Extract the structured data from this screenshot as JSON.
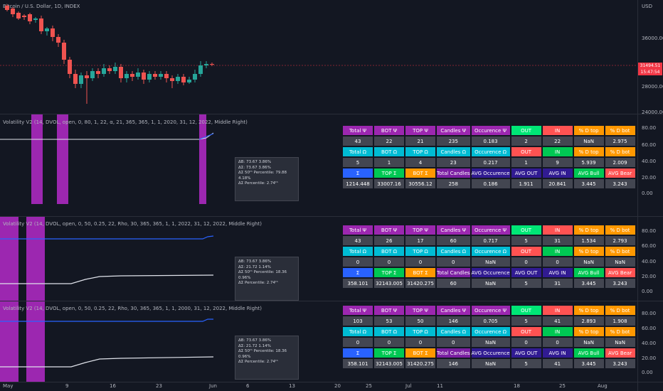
{
  "header": {
    "symbol_title": "Bitcoin / U.S. Dollar, 1D, INDEX",
    "currency": "USD"
  },
  "price_axis": {
    "ticks": [
      "36000.00",
      "28000.00",
      "24000.00"
    ],
    "last_price": "31494.51",
    "countdown": "15:47:54"
  },
  "pane_axes": {
    "pane1": [
      "80.00",
      "60.00",
      "40.00",
      "20.00",
      "0.00"
    ],
    "pane2": [
      "80.00",
      "60.00",
      "40.00",
      "20.00",
      "0.00"
    ],
    "pane3": [
      "80.00",
      "60.00",
      "40.00",
      "20.00",
      "0.00"
    ]
  },
  "time_axis": [
    "May",
    "9",
    "16",
    "23",
    "Jun",
    "6",
    "13",
    "20",
    "25",
    "Jul",
    "11",
    "18",
    "25",
    "Aug"
  ],
  "panes": [
    {
      "title": "Volatility V2 (14, DVOL, open, 0, 80, 1, 22, α, 21, 365, 365, 1, 1, 2020, 31, 12, 2022, Middle Right)",
      "info": [
        "ΔB: 73.67  3.86%",
        "ΔΣ: 73.67  3.86%",
        "ΔΣ 50ᵗʰ Percentile: 79.88  4.18%",
        "ΔΣ Percentile: 2.74ᵗʰ"
      ],
      "rows": [
        [
          "Total Ψ",
          "BOT Ψ",
          "TOP Ψ",
          "Candles Ψ",
          "Occurence Ψ",
          "OUT",
          "IN",
          "% D top",
          "% D bot"
        ],
        [
          "43",
          "22",
          "21",
          "235",
          "0.183",
          "2",
          "22",
          "NaN",
          "2.975"
        ],
        [
          "Total Ω",
          "BOT Ω",
          "TOP Ω",
          "Candles Ω",
          "Occurence Ω",
          "OUT",
          "IN",
          "% D top",
          "% D bot"
        ],
        [
          "5",
          "1",
          "4",
          "23",
          "0.217",
          "1",
          "9",
          "5.939",
          "2.009"
        ],
        [
          "Σ",
          "TOP Σ",
          "BOT Σ",
          "Total Candles",
          "AVG Occurence",
          "AVG OUT",
          "AVG IN",
          "AVG Bull",
          "AVG Bear"
        ],
        [
          "1214.448",
          "33007.16",
          "30556.12",
          "258",
          "0.186",
          "1.911",
          "20.841",
          "3.445",
          "3.243"
        ]
      ]
    },
    {
      "title": "Volatility V2 (14, DVOL, open, 0, 50, 0.25, 22, Rho, 30, 365, 365, 1, 1, 2022, 31, 12, 2022, Middle Right)",
      "info": [
        "ΔB: 73.67  3.86%",
        "ΔΣ: 21.72  1.14%",
        "ΔΣ 50ᵗʰ Percentile: 18.36  0.96%",
        "ΔΣ Percentile: 2.74ᵗʰ"
      ],
      "rows": [
        [
          "Total Ψ",
          "BOT Ψ",
          "TOP Ψ",
          "Candles Ψ",
          "Occurence Ψ",
          "OUT",
          "IN",
          "% D top",
          "% D bot"
        ],
        [
          "43",
          "26",
          "17",
          "60",
          "0.717",
          "5",
          "31",
          "1.534",
          "2.793"
        ],
        [
          "Total Ω",
          "BOT Ω",
          "TOP Ω",
          "Candles Ω",
          "Occurence Ω",
          "OUT",
          "IN",
          "% D top",
          "% D bot"
        ],
        [
          "0",
          "0",
          "0",
          "0",
          "NaN",
          "0",
          "0",
          "NaN",
          "NaN"
        ],
        [
          "Σ",
          "TOP Σ",
          "BOT Σ",
          "Total Candles",
          "AVG Occurence",
          "AVG OUT",
          "AVG IN",
          "AVG Bull",
          "AVG Bear"
        ],
        [
          "358.101",
          "32143.005",
          "31420.275",
          "60",
          "NaN",
          "5",
          "31",
          "3.445",
          "3.243"
        ]
      ]
    },
    {
      "title": "Volatility V2 (14, DVOL, open, 0, 50, 0.25, 22, Rho, 30, 365, 365, 1, 1, 2000, 31, 12, 2022, Middle Right)",
      "info": [
        "ΔB: 73.67  3.86%",
        "ΔΣ: 21.72  1.14%",
        "ΔΣ 50ᵗʰ Percentile: 18.36  0.96%",
        "ΔΣ Percentile: 2.74ᵗʰ"
      ],
      "rows": [
        [
          "Total Ψ",
          "BOT Ψ",
          "TOP Ψ",
          "Candles Ψ",
          "Occurence Ψ",
          "OUT",
          "IN",
          "% D top",
          "% D bot"
        ],
        [
          "103",
          "53",
          "50",
          "146",
          "0.705",
          "5",
          "41",
          "2.893",
          "1.908"
        ],
        [
          "Total Ω",
          "BOT Ω",
          "TOP Ω",
          "Candles Ω",
          "Occurence Ω",
          "OUT",
          "IN",
          "% D top",
          "% D bot"
        ],
        [
          "0",
          "0",
          "0",
          "0",
          "NaN",
          "0",
          "0",
          "NaN",
          "NaN"
        ],
        [
          "Σ",
          "TOP Σ",
          "BOT Σ",
          "Total Candles",
          "AVG Occurence",
          "AVG OUT",
          "AVG IN",
          "AVG Bull",
          "AVG Bear"
        ],
        [
          "358.101",
          "32143.005",
          "31420.275",
          "146",
          "NaN",
          "5",
          "41",
          "3.445",
          "3.243"
        ]
      ]
    }
  ],
  "colors": {
    "bull": "#26a69a",
    "bear": "#ef5350",
    "highlight": "#9c27b0",
    "line_blue": "#2962ff",
    "line_white": "#ffffff"
  }
}
